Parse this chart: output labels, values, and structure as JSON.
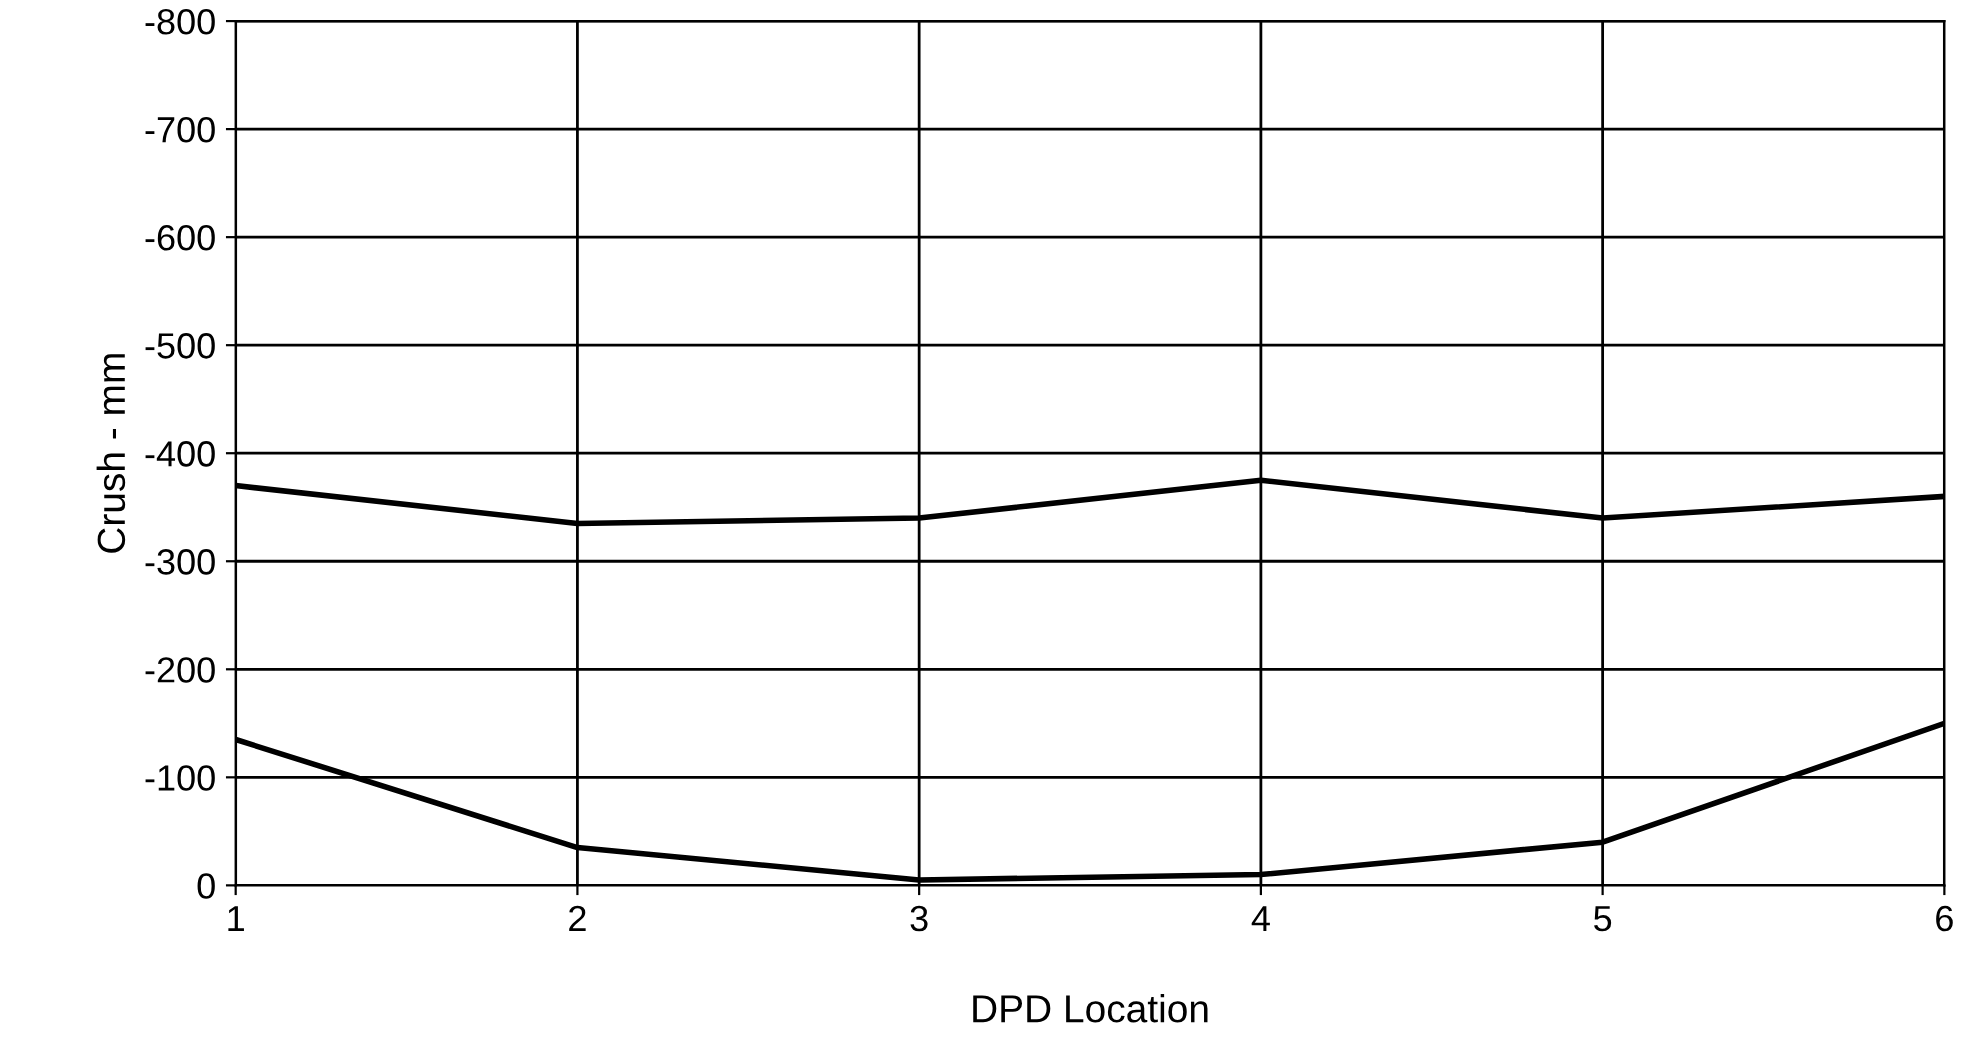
{
  "chart_data": {
    "type": "line",
    "xlabel": "DPD Location",
    "ylabel": "Crush - mm",
    "x": [
      1,
      2,
      3,
      4,
      5,
      6
    ],
    "series": [
      {
        "color": "#000000",
        "values": [
          -370,
          -335,
          -340,
          -375,
          -340,
          -360
        ]
      },
      {
        "color": "#000000",
        "values": [
          -135,
          -35,
          -5,
          -10,
          -40,
          -150
        ]
      }
    ],
    "xlim": [
      1,
      6
    ],
    "xticks": [
      1,
      2,
      3,
      4,
      5,
      6
    ],
    "ylim": [
      0,
      -800
    ],
    "yticks": [
      0,
      -100,
      -200,
      -300,
      -400,
      -500,
      -600,
      -700,
      -800
    ],
    "grid": true,
    "legend": false,
    "marker": "none",
    "line_style": "solid"
  }
}
